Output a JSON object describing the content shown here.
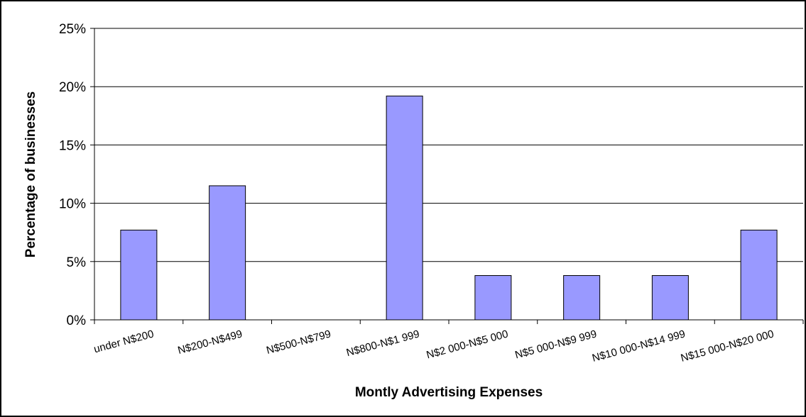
{
  "chart_data": {
    "type": "bar",
    "title": "",
    "xlabel": "Montly Advertising Expenses",
    "ylabel": "Percentage of businesses",
    "categories": [
      "under N$200",
      "N$200-N$499",
      "N$500-N$799",
      "N$800-N$1 999",
      "N$2 000-N$5 000",
      "N$5 000-N$9 999",
      "N$10 000-N$14 999",
      "N$15 000-N$20 000"
    ],
    "values": [
      7.7,
      11.5,
      0,
      19.2,
      3.8,
      3.8,
      3.8,
      7.7
    ],
    "ylim": [
      0,
      25
    ],
    "yticks": [
      "0%",
      "5%",
      "10%",
      "15%",
      "20%",
      "25%"
    ],
    "grid": true,
    "legend": false,
    "colors": {
      "bar_fill": "#9999FF",
      "bar_stroke": "#000000",
      "grid": "#000000"
    }
  }
}
